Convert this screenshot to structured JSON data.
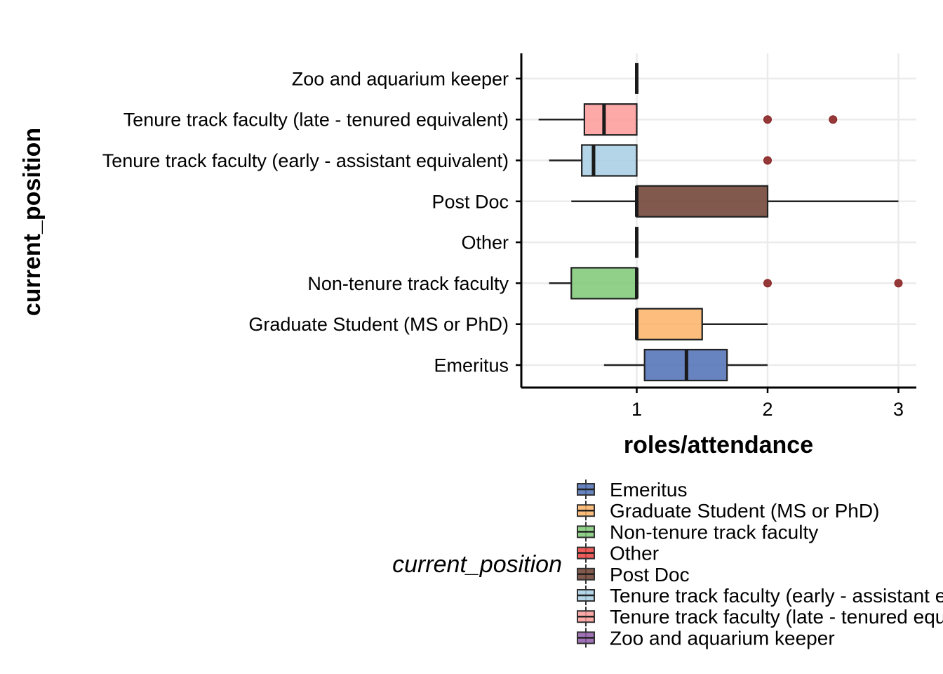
{
  "chart_data": {
    "type": "boxplot",
    "orientation": "horizontal",
    "xlabel": "roles/attendance",
    "ylabel": "current_position",
    "xlim": [
      0.18,
      3.13
    ],
    "x_ticks": [
      1,
      2,
      3
    ],
    "grid": true,
    "legend": {
      "title": "current_position",
      "position": "bottom",
      "entries": [
        {
          "label": "Emeritus",
          "color": "#4C6EB5"
        },
        {
          "label": "Graduate Student (MS or PhD)",
          "color": "#FDB366"
        },
        {
          "label": "Non-tenure track faculty",
          "color": "#7DC874"
        },
        {
          "label": "Other",
          "color": "#E8403E"
        },
        {
          "label": "Post Doc",
          "color": "#6B3D2E"
        },
        {
          "label": "Tenure track faculty (early - assistant equivalent)",
          "color": "#A6CEE3"
        },
        {
          "label": "Tenure track faculty (late - tenured equivalent)",
          "color": "#FB9A99"
        },
        {
          "label": "Zoo and aquarium keeper",
          "color": "#8E5BA8"
        }
      ]
    },
    "outlier_color": "#8B2323",
    "categories": [
      "Emeritus",
      "Graduate Student (MS or PhD)",
      "Non-tenure track faculty",
      "Other",
      "Post Doc",
      "Tenure track faculty (early - assistant equivalent)",
      "Tenure track faculty (late - tenured equivalent)",
      "Zoo and aquarium keeper"
    ],
    "boxes": [
      {
        "category": "Emeritus",
        "whisker_low": 0.75,
        "q1": 1.06,
        "median": 1.38,
        "q3": 1.69,
        "whisker_high": 2.0,
        "outliers": []
      },
      {
        "category": "Graduate Student (MS or PhD)",
        "whisker_low": 1.0,
        "q1": 1.0,
        "median": 1.0,
        "q3": 1.5,
        "whisker_high": 2.0,
        "outliers": []
      },
      {
        "category": "Non-tenure track faculty",
        "whisker_low": 0.33,
        "q1": 0.5,
        "median": 1.0,
        "q3": 1.0,
        "whisker_high": 1.0,
        "outliers": [
          2.0,
          3.0
        ]
      },
      {
        "category": "Other",
        "whisker_low": 1.0,
        "q1": 1.0,
        "median": 1.0,
        "q3": 1.0,
        "whisker_high": 1.0,
        "outliers": []
      },
      {
        "category": "Post Doc",
        "whisker_low": 0.5,
        "q1": 1.0,
        "median": 1.0,
        "q3": 2.0,
        "whisker_high": 3.0,
        "outliers": []
      },
      {
        "category": "Tenure track faculty (early - assistant equivalent)",
        "whisker_low": 0.33,
        "q1": 0.58,
        "median": 0.67,
        "q3": 1.0,
        "whisker_high": 1.0,
        "outliers": [
          2.0
        ]
      },
      {
        "category": "Tenure track faculty (late - tenured equivalent)",
        "whisker_low": 0.25,
        "q1": 0.6,
        "median": 0.75,
        "q3": 1.0,
        "whisker_high": 1.0,
        "outliers": [
          2.0,
          2.5
        ]
      },
      {
        "category": "Zoo and aquarium keeper",
        "whisker_low": 1.0,
        "q1": 1.0,
        "median": 1.0,
        "q3": 1.0,
        "whisker_high": 1.0,
        "outliers": []
      }
    ]
  }
}
